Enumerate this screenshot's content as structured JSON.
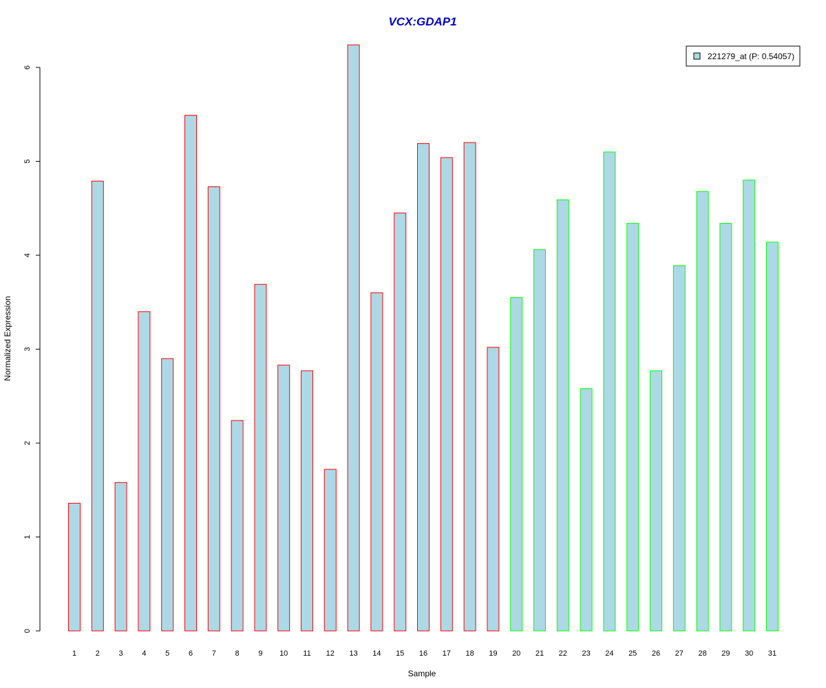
{
  "chart_data": {
    "type": "bar",
    "title": "VCX:GDAP1",
    "xlabel": "Sample",
    "ylabel": "Normalized Expression",
    "categories": [
      "1",
      "2",
      "3",
      "4",
      "5",
      "6",
      "7",
      "8",
      "9",
      "10",
      "11",
      "12",
      "13",
      "14",
      "15",
      "16",
      "17",
      "18",
      "19",
      "20",
      "21",
      "22",
      "23",
      "24",
      "25",
      "26",
      "27",
      "28",
      "29",
      "30",
      "31"
    ],
    "series": [
      {
        "name": "221279_at (P: 0.54057)",
        "values": [
          1.36,
          4.79,
          1.58,
          3.4,
          2.9,
          5.49,
          4.73,
          2.24,
          3.69,
          2.83,
          2.77,
          1.72,
          6.24,
          3.6,
          4.45,
          5.19,
          5.04,
          5.2,
          3.02,
          3.55,
          4.06,
          4.59,
          2.58,
          5.1,
          4.34,
          2.77,
          3.89,
          4.68,
          4.34,
          4.8,
          4.14
        ]
      }
    ],
    "group_of_sample": [
      "red",
      "red",
      "red",
      "red",
      "red",
      "red",
      "red",
      "red",
      "red",
      "red",
      "red",
      "red",
      "red",
      "red",
      "red",
      "red",
      "red",
      "red",
      "red",
      "green",
      "green",
      "green",
      "green",
      "green",
      "green",
      "green",
      "green",
      "green",
      "green",
      "green",
      "green"
    ],
    "ylim": [
      0,
      6.3
    ],
    "yticks": [
      "0",
      "1",
      "2",
      "3",
      "4",
      "5",
      "6"
    ],
    "grid": false,
    "legend_position": "top-right",
    "colors": {
      "bar_fill": "#add8e6",
      "title": "#0000cc",
      "red": "#ff0000",
      "green": "#00ff00",
      "axis": "#000000"
    }
  }
}
